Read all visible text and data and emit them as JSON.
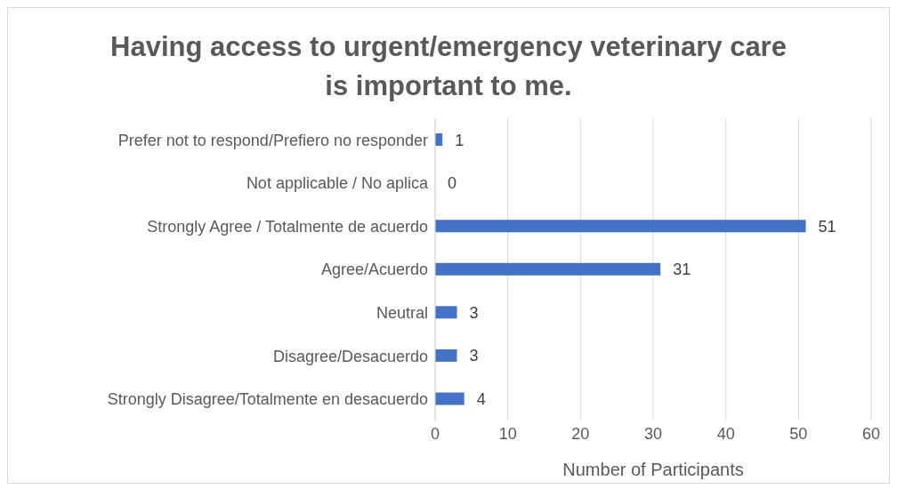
{
  "chart_data": {
    "type": "bar",
    "orientation": "horizontal",
    "title": "Having access to urgent/emergency veterinary care is important to me.",
    "xlabel": "Number of Participants",
    "categories": [
      "Prefer not to respond/Prefiero no responder",
      "Not applicable / No aplica",
      "Strongly Agree / Totalmente de acuerdo",
      "Agree/Acuerdo",
      "Neutral",
      "Disagree/Desacuerdo",
      "Strongly Disagree/Totalmente en desacuerdo"
    ],
    "values": [
      1,
      0,
      51,
      31,
      3,
      3,
      4
    ],
    "color": "#4472c4",
    "xlim": [
      0,
      60
    ],
    "xticks": [
      0,
      10,
      20,
      30,
      40,
      50,
      60
    ],
    "grid": "x",
    "data_labels": true,
    "legend": false
  }
}
